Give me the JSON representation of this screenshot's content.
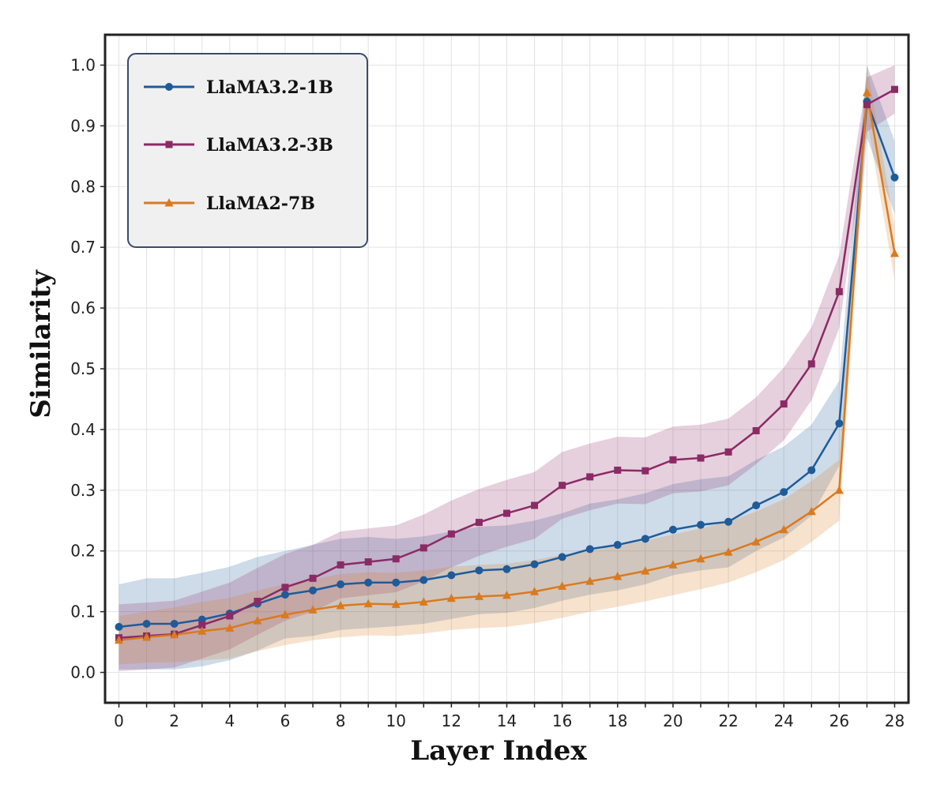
{
  "chart_data": {
    "type": "line",
    "xlabel": "Layer Index",
    "ylabel": "Similarity",
    "xlim": [
      -0.5,
      28.5
    ],
    "ylim": [
      -0.05,
      1.05
    ],
    "x_ticks": [
      "0",
      "2",
      "4",
      "6",
      "8",
      "10",
      "12",
      "14",
      "16",
      "18",
      "20",
      "22",
      "24",
      "26",
      "28"
    ],
    "y_ticks": [
      "0.0",
      "0.1",
      "0.2",
      "0.3",
      "0.4",
      "0.5",
      "0.6",
      "0.7",
      "0.8",
      "0.9",
      "1.0"
    ],
    "grid": true,
    "legend_position": "top-left",
    "series": [
      {
        "name": "LlaMA3.2-1B",
        "color": "#1f5b99",
        "marker": "circle",
        "x": [
          0,
          1,
          2,
          3,
          4,
          5,
          6,
          7,
          8,
          9,
          10,
          11,
          12,
          13,
          14,
          15,
          16,
          17,
          18,
          19,
          20,
          21,
          22,
          23,
          24,
          25,
          26,
          27,
          28
        ],
        "values": [
          0.075,
          0.08,
          0.08,
          0.087,
          0.097,
          0.113,
          0.128,
          0.135,
          0.145,
          0.148,
          0.148,
          0.152,
          0.16,
          0.168,
          0.17,
          0.178,
          0.19,
          0.203,
          0.21,
          0.22,
          0.235,
          0.243,
          0.248,
          0.275,
          0.297,
          0.333,
          0.41,
          0.94,
          0.815
        ],
        "band": [
          0.07,
          0.075,
          0.075,
          0.077,
          0.077,
          0.077,
          0.072,
          0.075,
          0.075,
          0.075,
          0.072,
          0.072,
          0.072,
          0.072,
          0.072,
          0.072,
          0.072,
          0.075,
          0.075,
          0.075,
          0.075,
          0.075,
          0.075,
          0.075,
          0.075,
          0.075,
          0.07,
          0.06,
          0.06
        ]
      },
      {
        "name": "LlaMA3.2-3B",
        "color": "#8b2a66",
        "marker": "square",
        "x": [
          0,
          1,
          2,
          3,
          4,
          5,
          6,
          7,
          8,
          9,
          10,
          11,
          12,
          13,
          14,
          15,
          16,
          17,
          18,
          19,
          20,
          21,
          22,
          23,
          24,
          25,
          26,
          27,
          28
        ],
        "values": [
          0.057,
          0.06,
          0.063,
          0.078,
          0.093,
          0.117,
          0.14,
          0.155,
          0.177,
          0.182,
          0.187,
          0.205,
          0.228,
          0.247,
          0.262,
          0.275,
          0.308,
          0.322,
          0.333,
          0.332,
          0.35,
          0.353,
          0.363,
          0.398,
          0.442,
          0.508,
          0.627,
          0.935,
          0.96
        ],
        "band": [
          0.055,
          0.055,
          0.055,
          0.055,
          0.055,
          0.055,
          0.055,
          0.055,
          0.055,
          0.055,
          0.055,
          0.055,
          0.055,
          0.055,
          0.055,
          0.055,
          0.055,
          0.055,
          0.055,
          0.055,
          0.055,
          0.055,
          0.055,
          0.055,
          0.06,
          0.06,
          0.06,
          0.045,
          0.04
        ]
      },
      {
        "name": "LlaMA2-7B",
        "color": "#d97a1f",
        "marker": "triangle",
        "x": [
          0,
          1,
          2,
          3,
          4,
          5,
          6,
          7,
          8,
          9,
          10,
          11,
          12,
          13,
          14,
          15,
          16,
          17,
          18,
          19,
          20,
          21,
          22,
          23,
          24,
          25,
          26,
          27,
          28
        ],
        "values": [
          0.053,
          0.058,
          0.062,
          0.068,
          0.073,
          0.085,
          0.095,
          0.103,
          0.11,
          0.113,
          0.112,
          0.116,
          0.122,
          0.125,
          0.127,
          0.133,
          0.142,
          0.15,
          0.158,
          0.167,
          0.177,
          0.187,
          0.198,
          0.215,
          0.235,
          0.265,
          0.3,
          0.955,
          0.69
        ],
        "band": [
          0.04,
          0.042,
          0.045,
          0.048,
          0.05,
          0.05,
          0.05,
          0.05,
          0.052,
          0.052,
          0.052,
          0.052,
          0.052,
          0.052,
          0.052,
          0.052,
          0.052,
          0.05,
          0.05,
          0.05,
          0.05,
          0.05,
          0.05,
          0.05,
          0.05,
          0.05,
          0.05,
          0.045,
          0.045
        ]
      }
    ]
  }
}
